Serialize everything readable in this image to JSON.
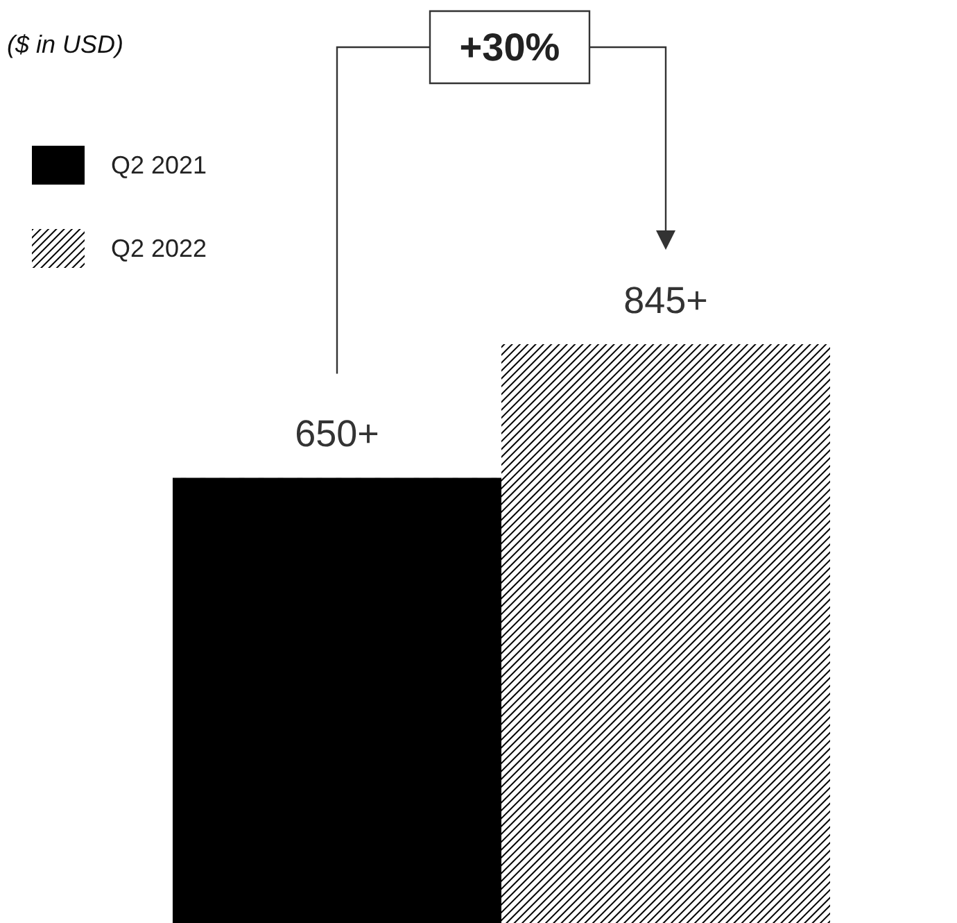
{
  "chart_data": {
    "type": "bar",
    "title": "($ in USD)",
    "categories": [
      null
    ],
    "series": [
      {
        "name": "Q2 2021",
        "color": "#000000",
        "values": [
          650
        ],
        "value_labels": [
          "650+"
        ]
      },
      {
        "name": "Q2 2022",
        "color": "#000000",
        "values": [
          845
        ],
        "value_labels": [
          "845+"
        ]
      }
    ],
    "annotations": [
      "+30%"
    ],
    "legend": "top left"
  }
}
